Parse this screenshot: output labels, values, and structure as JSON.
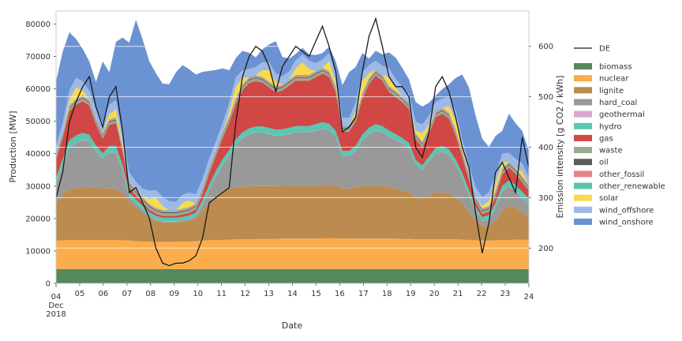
{
  "chart_data": {
    "type": "area",
    "stacked": true,
    "secondary_line": true,
    "xlabel": "Date",
    "ylabel_left": "Production [MW]",
    "ylabel_right": "Emission intensity [g CO2 / kWh]",
    "ylim_left": [
      0,
      84000
    ],
    "ylim_right": [
      130,
      670
    ],
    "xlim": [
      "2018-12-04",
      "2018-12-24"
    ],
    "y_ticks_left": [
      "0",
      "10000",
      "20000",
      "30000",
      "40000",
      "50000",
      "60000",
      "70000",
      "80000"
    ],
    "y_ticks_right": [
      "200",
      "300",
      "400",
      "500",
      "600"
    ],
    "x_tick_labels": [
      {
        "day": "04",
        "month": "Dec",
        "year": "2018"
      },
      {
        "day": "05"
      },
      {
        "day": "06"
      },
      {
        "day": "07"
      },
      {
        "day": "08"
      },
      {
        "day": "09"
      },
      {
        "day": "10"
      },
      {
        "day": "11"
      },
      {
        "day": "12"
      },
      {
        "day": "13"
      },
      {
        "day": "14"
      },
      {
        "day": "15"
      },
      {
        "day": "16"
      },
      {
        "day": "17"
      },
      {
        "day": "18"
      },
      {
        "day": "19"
      },
      {
        "day": "20"
      },
      {
        "day": "21"
      },
      {
        "day": "22"
      },
      {
        "day": "23"
      },
      {
        "day": "24"
      }
    ],
    "grid": "horizontal",
    "legend_position": "right",
    "line_series": {
      "name": "DE",
      "color": "#1a1a1a",
      "values": [
        300,
        350,
        450,
        490,
        520,
        540,
        480,
        440,
        500,
        520,
        430,
        310,
        320,
        290,
        260,
        200,
        170,
        165,
        170,
        170,
        175,
        185,
        220,
        290,
        300,
        310,
        320,
        450,
        540,
        580,
        600,
        590,
        560,
        510,
        560,
        580,
        600,
        590,
        580,
        610,
        640,
        600,
        550,
        430,
        440,
        460,
        550,
        620,
        655,
        600,
        540,
        520,
        520,
        500,
        400,
        380,
        430,
        520,
        540,
        510,
        460,
        400,
        360,
        270,
        190,
        250,
        350,
        370,
        340,
        310,
        420,
        360
      ]
    },
    "series": [
      {
        "name": "biomass",
        "color": "#55885a",
        "values": [
          4400,
          4400,
          4400,
          4400,
          4400,
          4400,
          4400,
          4400,
          4400,
          4400,
          4400,
          4400,
          4400,
          4400,
          4400,
          4400,
          4400,
          4400,
          4400,
          4400,
          4400,
          4400,
          4400,
          4400,
          4400,
          4400,
          4400,
          4400,
          4400,
          4400,
          4400,
          4400,
          4400,
          4400,
          4400,
          4400,
          4400,
          4400,
          4400,
          4400,
          4400,
          4400,
          4400,
          4400,
          4400,
          4400,
          4400,
          4400,
          4400,
          4400,
          4400,
          4400,
          4400,
          4400,
          4400,
          4400,
          4400,
          4400,
          4400,
          4400,
          4400,
          4400,
          4400,
          4400,
          4400,
          4400,
          4400,
          4400,
          4400,
          4400,
          4400,
          4400
        ]
      },
      {
        "name": "nuclear",
        "color": "#fbad4b",
        "values": [
          8800,
          8900,
          9000,
          9000,
          9000,
          9000,
          9000,
          9000,
          9000,
          9000,
          8900,
          8800,
          8600,
          8500,
          8400,
          8400,
          8400,
          8400,
          8400,
          8500,
          8500,
          8600,
          8800,
          8900,
          9000,
          9000,
          9100,
          9200,
          9200,
          9200,
          9300,
          9300,
          9300,
          9300,
          9400,
          9400,
          9400,
          9400,
          9400,
          9400,
          9500,
          9500,
          9500,
          9400,
          9400,
          9400,
          9400,
          9400,
          9400,
          9400,
          9400,
          9400,
          9300,
          9300,
          9200,
          9200,
          9200,
          9200,
          9200,
          9200,
          9200,
          9100,
          9000,
          8900,
          8800,
          8800,
          8900,
          9000,
          9000,
          9100,
          9100,
          9000
        ]
      },
      {
        "name": "lignite",
        "color": "#bb8b4f",
        "values": [
          11500,
          14000,
          15500,
          16000,
          16300,
          16300,
          16200,
          16000,
          16000,
          15500,
          14500,
          12000,
          10500,
          9000,
          7500,
          6500,
          6000,
          6000,
          6000,
          6200,
          6500,
          7000,
          9000,
          11500,
          13500,
          15000,
          15800,
          16000,
          16200,
          16300,
          16300,
          16300,
          16300,
          16300,
          16300,
          16300,
          16300,
          16300,
          16300,
          16300,
          16300,
          16300,
          16300,
          15500,
          15500,
          16000,
          16300,
          16300,
          16300,
          16300,
          16000,
          15500,
          15000,
          14500,
          13000,
          12500,
          13500,
          14500,
          14500,
          14000,
          13000,
          11000,
          8500,
          6000,
          4500,
          4500,
          6000,
          9000,
          10500,
          10000,
          8500,
          7000
        ]
      },
      {
        "name": "hard_coal",
        "color": "#999999",
        "values": [
          6000,
          9000,
          13000,
          14000,
          14500,
          14000,
          11000,
          9000,
          11000,
          11500,
          7000,
          1500,
          1000,
          800,
          500,
          400,
          300,
          300,
          300,
          300,
          400,
          600,
          2000,
          4000,
          6000,
          8000,
          10000,
          13000,
          15000,
          16000,
          16500,
          16500,
          16000,
          15500,
          15500,
          16000,
          16500,
          16500,
          16500,
          17000,
          17500,
          17000,
          15000,
          10000,
          10000,
          11000,
          14000,
          16000,
          17000,
          16500,
          15500,
          15000,
          14500,
          13500,
          10000,
          9000,
          10500,
          12000,
          12500,
          12000,
          10000,
          8000,
          5500,
          3000,
          1500,
          2000,
          4000,
          6000,
          6000,
          5000,
          4500,
          4000
        ]
      },
      {
        "name": "geothermal",
        "color": "#d7a8cf",
        "values": [
          30,
          30,
          30,
          30,
          30,
          30,
          30,
          30,
          30,
          30,
          30,
          30,
          30,
          30,
          30,
          30,
          30,
          30,
          30,
          30,
          30,
          30,
          30,
          30,
          30,
          30,
          30,
          30,
          30,
          30,
          30,
          30,
          30,
          30,
          30,
          30,
          30,
          30,
          30,
          30,
          30,
          30,
          30,
          30,
          30,
          30,
          30,
          30,
          30,
          30,
          30,
          30,
          30,
          30,
          30,
          30,
          30,
          30,
          30,
          30,
          30,
          30,
          30,
          30,
          30,
          30,
          30,
          30,
          30,
          30,
          30,
          30
        ]
      },
      {
        "name": "hydro",
        "color": "#59c7b2",
        "values": [
          1800,
          2000,
          2200,
          2200,
          2200,
          2100,
          1900,
          1700,
          1900,
          2000,
          1600,
          1400,
          1300,
          1200,
          1100,
          1100,
          1100,
          1100,
          1100,
          1100,
          1100,
          1200,
          1400,
          1600,
          1800,
          1800,
          1800,
          1800,
          1800,
          1900,
          1900,
          1900,
          1900,
          1900,
          1900,
          1900,
          1900,
          1900,
          1900,
          2000,
          2000,
          2000,
          1800,
          1500,
          1500,
          1600,
          1800,
          1900,
          2000,
          1900,
          1800,
          1700,
          1600,
          1600,
          1400,
          1300,
          1500,
          1700,
          1700,
          1700,
          1600,
          1500,
          1400,
          1300,
          1200,
          1300,
          1500,
          1700,
          1800,
          1800,
          1700,
          1600
        ]
      },
      {
        "name": "gas",
        "color": "#d04745",
        "values": [
          5500,
          6500,
          9000,
          9500,
          9800,
          9000,
          6500,
          4500,
          6500,
          7000,
          4000,
          1500,
          1200,
          1000,
          800,
          700,
          600,
          600,
          600,
          700,
          800,
          1000,
          2000,
          3500,
          4500,
          6500,
          8500,
          11000,
          13000,
          14000,
          14000,
          13500,
          12500,
          11500,
          12000,
          13000,
          14000,
          14000,
          14000,
          14500,
          15000,
          14500,
          12000,
          6000,
          6000,
          7500,
          11000,
          13500,
          15000,
          14000,
          12000,
          11500,
          11000,
          10500,
          6500,
          5500,
          7000,
          9500,
          10000,
          9500,
          7500,
          5000,
          3000,
          1500,
          1000,
          1000,
          2000,
          3500,
          4000,
          3500,
          3000,
          2500
        ]
      },
      {
        "name": "waste",
        "color": "#99ab90",
        "values": [
          800,
          800,
          800,
          800,
          800,
          800,
          800,
          800,
          800,
          800,
          800,
          800,
          800,
          800,
          800,
          800,
          800,
          800,
          800,
          800,
          800,
          800,
          800,
          800,
          800,
          800,
          800,
          800,
          800,
          800,
          800,
          800,
          800,
          800,
          800,
          800,
          800,
          800,
          800,
          800,
          800,
          800,
          800,
          800,
          800,
          800,
          800,
          800,
          800,
          800,
          800,
          800,
          800,
          800,
          800,
          800,
          800,
          800,
          800,
          800,
          800,
          800,
          800,
          800,
          800,
          800,
          800,
          800,
          800,
          800,
          800,
          800
        ]
      },
      {
        "name": "oil",
        "color": "#5c5c5c",
        "values": [
          300,
          300,
          300,
          300,
          300,
          300,
          300,
          300,
          300,
          300,
          300,
          300,
          300,
          300,
          300,
          300,
          300,
          300,
          300,
          300,
          300,
          300,
          300,
          300,
          300,
          300,
          300,
          300,
          300,
          300,
          300,
          300,
          300,
          300,
          300,
          300,
          300,
          300,
          300,
          300,
          300,
          300,
          300,
          300,
          300,
          300,
          300,
          300,
          300,
          300,
          300,
          300,
          300,
          300,
          300,
          300,
          300,
          300,
          300,
          300,
          300,
          300,
          300,
          300,
          300,
          300,
          300,
          300,
          300,
          300,
          300,
          300
        ]
      },
      {
        "name": "other_fossil",
        "color": "#e38488",
        "values": [
          400,
          400,
          400,
          400,
          400,
          400,
          400,
          400,
          400,
          400,
          400,
          400,
          400,
          400,
          400,
          400,
          400,
          400,
          400,
          400,
          400,
          400,
          400,
          400,
          400,
          400,
          400,
          400,
          400,
          400,
          400,
          400,
          400,
          400,
          400,
          400,
          400,
          400,
          400,
          400,
          400,
          400,
          400,
          400,
          400,
          400,
          400,
          400,
          400,
          400,
          400,
          400,
          400,
          400,
          400,
          400,
          400,
          400,
          400,
          400,
          400,
          400,
          400,
          400,
          400,
          400,
          400,
          400,
          400,
          400,
          400,
          400
        ]
      },
      {
        "name": "other_renewable",
        "color": "#5fc1aa",
        "values": [
          300,
          300,
          300,
          300,
          300,
          300,
          300,
          300,
          300,
          300,
          300,
          300,
          300,
          300,
          300,
          300,
          300,
          300,
          300,
          300,
          300,
          300,
          300,
          300,
          300,
          300,
          300,
          300,
          300,
          300,
          300,
          300,
          300,
          300,
          300,
          300,
          300,
          300,
          300,
          300,
          300,
          300,
          300,
          300,
          300,
          300,
          300,
          300,
          300,
          300,
          300,
          300,
          300,
          300,
          300,
          300,
          300,
          300,
          300,
          300,
          300,
          300,
          300,
          300,
          300,
          300,
          300,
          300,
          300,
          300,
          300,
          300
        ]
      },
      {
        "name": "solar",
        "color": "#fbd94a",
        "values": [
          0,
          0,
          1500,
          3500,
          1500,
          0,
          0,
          0,
          1500,
          2500,
          800,
          0,
          0,
          0,
          1500,
          3000,
          1200,
          0,
          0,
          1800,
          2000,
          0,
          0,
          0,
          0,
          0,
          1500,
          3500,
          1800,
          0,
          0,
          2000,
          3500,
          1500,
          0,
          0,
          2000,
          3800,
          1800,
          0,
          0,
          3000,
          1200,
          0,
          0,
          1500,
          3800,
          1500,
          0,
          0,
          2500,
          1000,
          0,
          0,
          800,
          2500,
          1000,
          0,
          0,
          2000,
          3000,
          800,
          0,
          0,
          600,
          1500,
          2000,
          1800,
          0,
          0,
          1500,
          0
        ]
      },
      {
        "name": "wind_offshore",
        "color": "#9eb9e5",
        "values": [
          2500,
          2800,
          3000,
          3000,
          2800,
          2800,
          2800,
          3000,
          3000,
          2800,
          2800,
          2800,
          2500,
          2500,
          2500,
          2500,
          2800,
          2800,
          2500,
          2500,
          2500,
          2800,
          2800,
          2800,
          2800,
          2800,
          2800,
          2800,
          2500,
          2500,
          2500,
          2500,
          2500,
          2500,
          2500,
          2500,
          2500,
          2500,
          2500,
          2500,
          2500,
          2500,
          2500,
          2500,
          2500,
          2500,
          2500,
          2500,
          2800,
          2800,
          2800,
          2800,
          2800,
          2800,
          2800,
          2800,
          2800,
          2800,
          2800,
          2800,
          2800,
          2800,
          2800,
          2800,
          2800,
          2800,
          2800,
          2800,
          2800,
          2800,
          2500,
          2500
        ]
      },
      {
        "name": "wind_onshore",
        "color": "#6b92d2",
        "values": [
          20000,
          22000,
          18000,
          12000,
          10000,
          9000,
          8500,
          19000,
          10000,
          18000,
          30000,
          40000,
          50000,
          46000,
          40000,
          36000,
          35000,
          36000,
          40000,
          40000,
          38000,
          37000,
          33000,
          27000,
          22000,
          17000,
          10000,
          6000,
          6000,
          5000,
          3000,
          4000,
          5500,
          10000,
          6000,
          4000,
          2000,
          2000,
          2000,
          2500,
          2000,
          2000,
          4000,
          10000,
          14000,
          11000,
          6000,
          2000,
          3000,
          3500,
          5000,
          6500,
          6000,
          4500,
          6000,
          5500,
          4000,
          2000,
          3000,
          4000,
          10000,
          20000,
          24000,
          22000,
          18000,
          14000,
          12000,
          7000,
          12000,
          11000,
          10000,
          8000
        ]
      }
    ]
  }
}
